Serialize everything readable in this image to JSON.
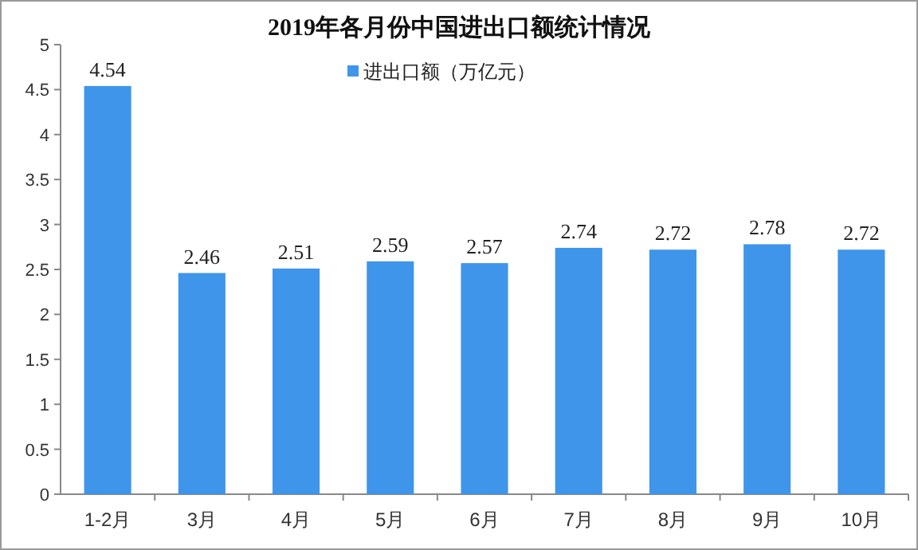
{
  "chart_data": {
    "type": "bar",
    "title": "2019年各月份中国进出口额统计情况",
    "categories": [
      "1-2月",
      "3月",
      "4月",
      "5月",
      "6月",
      "7月",
      "8月",
      "9月",
      "10月"
    ],
    "series": [
      {
        "name": "进出口额（万亿元）",
        "color": "#3f95ea",
        "values": [
          4.54,
          2.46,
          2.51,
          2.59,
          2.57,
          2.74,
          2.72,
          2.78,
          2.72
        ]
      }
    ],
    "ylim": [
      0,
      5
    ],
    "yticks": [
      0,
      0.5,
      1,
      1.5,
      2,
      2.5,
      3,
      3.5,
      4,
      4.5,
      5
    ],
    "grid": false,
    "legend": "top",
    "data_labels": true
  }
}
